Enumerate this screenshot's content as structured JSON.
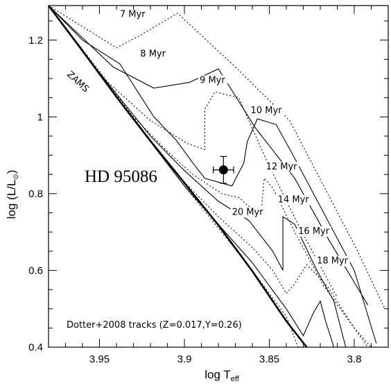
{
  "chart_data": {
    "type": "line",
    "xlabel": "log T",
    "xlabel_sub": "eff",
    "ylabel": "log (L/L",
    "ylabel_symbol": "⊙",
    "ylabel_close": ")",
    "xlim": [
      3.98,
      3.78
    ],
    "ylim": [
      0.4,
      1.29
    ],
    "x_reversed": true,
    "x_ticks": [
      3.95,
      3.9,
      3.85,
      3.8
    ],
    "x_tick_labels": [
      "3.95",
      "3.9",
      "3.85",
      "3.8"
    ],
    "y_ticks": [
      0.4,
      0.6,
      0.8,
      1.0,
      1.2
    ],
    "y_tick_labels": [
      "0.4",
      "0.6",
      "0.8",
      "1",
      "1.2"
    ],
    "zams_label": "ZAMS",
    "star_label": "HD 95086",
    "note": "Dotter+2008 tracks (Z=0.017,Y=0.26)",
    "zams": [
      [
        3.98,
        1.29
      ],
      [
        3.96,
        1.172
      ],
      [
        3.94,
        1.052
      ],
      [
        3.92,
        0.937
      ],
      [
        3.9,
        0.828
      ],
      [
        3.88,
        0.718
      ],
      [
        3.86,
        0.598
      ],
      [
        3.84,
        0.468
      ],
      [
        3.828,
        0.4
      ]
    ],
    "star": {
      "x": 3.877,
      "y": 0.862,
      "x_err": 0.006,
      "y_err": 0.035
    },
    "isochrones": [
      {
        "label": "7 Myr",
        "label_pos": [
          3.938,
          1.26
        ],
        "points": [
          [
            3.98,
            1.29
          ],
          [
            3.94,
            1.18
          ],
          [
            3.927,
            1.21
          ],
          [
            3.904,
            1.27
          ],
          [
            3.87,
            1.13
          ],
          [
            3.838,
            0.99
          ],
          [
            3.818,
            0.82
          ],
          [
            3.798,
            0.65
          ],
          [
            3.782,
            0.5
          ]
        ]
      },
      {
        "label": "8 Myr",
        "label_pos": [
          3.926,
          1.157
        ],
        "points": [
          [
            3.98,
            1.29
          ],
          [
            3.942,
            1.13
          ],
          [
            3.918,
            1.075
          ],
          [
            3.897,
            1.09
          ],
          [
            3.88,
            1.125
          ],
          [
            3.858,
            0.97
          ],
          [
            3.835,
            0.84
          ],
          [
            3.815,
            0.68
          ],
          [
            3.792,
            0.51
          ]
        ]
      },
      {
        "label": "9 Myr",
        "label_pos": [
          3.891,
          1.088
        ],
        "points": [
          [
            3.98,
            1.29
          ],
          [
            3.945,
            1.09
          ],
          [
            3.92,
            0.99
          ],
          [
            3.898,
            0.93
          ],
          [
            3.888,
            0.915
          ],
          [
            3.888,
            1.02
          ],
          [
            3.882,
            1.065
          ],
          [
            3.868,
            1.05
          ],
          [
            3.852,
            0.89
          ],
          [
            3.832,
            0.71
          ],
          [
            3.81,
            0.53
          ]
        ]
      },
      {
        "label": "10 Myr",
        "label_pos": [
          3.861,
          1.01
        ],
        "points": [
          [
            3.98,
            1.29
          ],
          [
            3.96,
            1.2
          ],
          [
            3.938,
            1.138
          ],
          [
            3.918,
            1.0
          ],
          [
            3.905,
            0.94
          ],
          [
            3.895,
            0.88
          ],
          [
            3.888,
            0.84
          ],
          [
            3.872,
            0.82
          ],
          [
            3.865,
            0.88
          ],
          [
            3.863,
            0.935
          ],
          [
            3.857,
            0.995
          ],
          [
            3.846,
            0.98
          ],
          [
            3.836,
            0.9
          ],
          [
            3.818,
            0.75
          ],
          [
            3.8,
            0.6
          ],
          [
            3.787,
            0.41
          ]
        ]
      },
      {
        "label": "12 Myr",
        "label_pos": [
          3.852,
          0.863
        ],
        "points": [
          [
            3.98,
            1.29
          ],
          [
            3.96,
            1.17
          ],
          [
            3.93,
            1.0
          ],
          [
            3.91,
            0.91
          ],
          [
            3.895,
            0.85
          ],
          [
            3.878,
            0.8
          ],
          [
            3.868,
            0.79
          ],
          [
            3.855,
            0.74
          ],
          [
            3.853,
            0.84
          ],
          [
            3.848,
            0.815
          ],
          [
            3.835,
            0.7
          ],
          [
            3.818,
            0.56
          ],
          [
            3.8,
            0.45
          ],
          [
            3.79,
            0.4
          ]
        ]
      },
      {
        "label": "14 Myr",
        "label_pos": [
          3.845,
          0.777
        ],
        "points": [
          [
            3.98,
            1.29
          ],
          [
            3.96,
            1.17
          ],
          [
            3.92,
            0.95
          ],
          [
            3.9,
            0.86
          ],
          [
            3.88,
            0.78
          ],
          [
            3.862,
            0.73
          ],
          [
            3.848,
            0.65
          ],
          [
            3.842,
            0.6
          ],
          [
            3.842,
            0.74
          ],
          [
            3.835,
            0.72
          ],
          [
            3.822,
            0.6
          ],
          [
            3.812,
            0.52
          ],
          [
            3.805,
            0.4
          ]
        ]
      },
      {
        "label": "16 Myr",
        "label_pos": [
          3.833,
          0.695
        ],
        "points": [
          [
            3.98,
            1.29
          ],
          [
            3.96,
            1.17
          ],
          [
            3.92,
            0.94
          ],
          [
            3.9,
            0.83
          ],
          [
            3.88,
            0.74
          ],
          [
            3.86,
            0.66
          ],
          [
            3.848,
            0.6
          ],
          [
            3.84,
            0.54
          ],
          [
            3.835,
            0.565
          ],
          [
            3.828,
            0.615
          ],
          [
            3.816,
            0.56
          ],
          [
            3.8,
            0.45
          ],
          [
            3.792,
            0.4
          ]
        ]
      },
      {
        "label": "18 Myr",
        "label_pos": [
          3.822,
          0.618
        ],
        "points": [
          [
            3.98,
            1.29
          ],
          [
            3.96,
            1.17
          ],
          [
            3.92,
            0.935
          ],
          [
            3.9,
            0.82
          ],
          [
            3.88,
            0.72
          ],
          [
            3.86,
            0.62
          ],
          [
            3.84,
            0.5
          ],
          [
            3.83,
            0.43
          ],
          [
            3.824,
            0.49
          ],
          [
            3.82,
            0.52
          ],
          [
            3.817,
            0.47
          ],
          [
            3.812,
            0.4
          ]
        ]
      },
      {
        "label": "20 Myr",
        "label_pos": [
          3.872,
          0.745
        ],
        "points": [
          [
            3.98,
            1.29
          ],
          [
            3.96,
            1.17
          ],
          [
            3.92,
            0.935
          ],
          [
            3.9,
            0.82
          ],
          [
            3.88,
            0.71
          ],
          [
            3.86,
            0.6
          ],
          [
            3.84,
            0.48
          ],
          [
            3.833,
            0.4
          ]
        ]
      }
    ]
  }
}
